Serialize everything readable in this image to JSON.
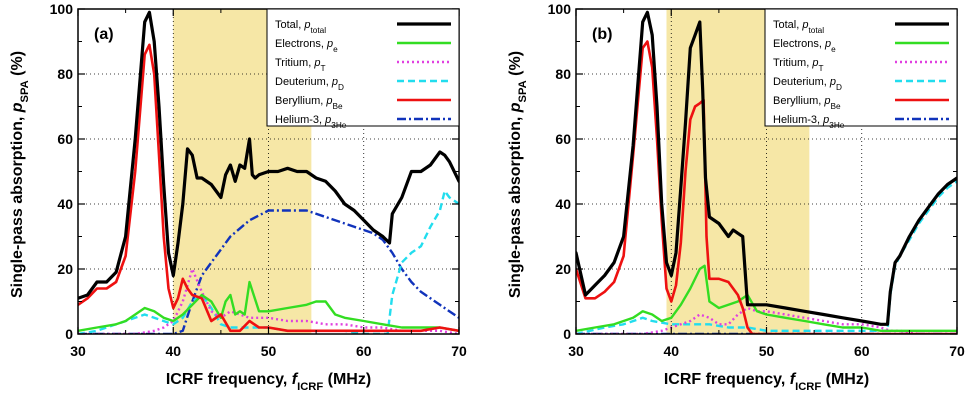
{
  "chart_data": [
    {
      "type": "line",
      "panel_label": "(a)",
      "xlabel": "ICRF frequency, f",
      "xlabel_sub": "ICRF",
      "xlabel_unit": " (MHz)",
      "ylabel": "Single-pass absorption, p",
      "ylabel_sub": "SPA",
      "ylabel_unit": " (%)",
      "xlim": [
        30,
        70
      ],
      "ylim": [
        0,
        100
      ],
      "xticks": [
        "30",
        "40",
        "50",
        "60",
        "70"
      ],
      "yticks": [
        "0",
        "20",
        "40",
        "60",
        "80",
        "100"
      ],
      "grid": true,
      "legend_position": "top-right",
      "shaded_band": [
        40,
        54.5
      ],
      "band_color": "#f6e7a6",
      "series": [
        {
          "name": "Total,",
          "sym": "p",
          "sub": "total",
          "color": "#000000",
          "dash": "",
          "width": 3.2,
          "x": [
            30,
            31,
            32,
            33,
            34,
            35,
            36,
            37,
            37.5,
            38,
            38.5,
            39,
            39.5,
            40,
            40.5,
            41,
            41.5,
            42,
            42.5,
            43,
            44,
            45,
            45.5,
            46,
            46.5,
            47,
            47.5,
            48,
            48.3,
            48.6,
            49,
            50,
            51,
            52,
            53,
            54,
            55,
            56,
            57,
            58,
            59,
            60,
            61,
            62,
            62.7,
            63,
            64,
            65,
            66,
            67,
            68,
            68.5,
            69,
            70
          ],
          "y": [
            11,
            12,
            16,
            16,
            19,
            30,
            60,
            96,
            99,
            90,
            70,
            46,
            25,
            18,
            28,
            40,
            57,
            55,
            48,
            48,
            46,
            42,
            49,
            52,
            47,
            52,
            51,
            60,
            49,
            48,
            49,
            50,
            50,
            51,
            50,
            50,
            48,
            47,
            44,
            40,
            38,
            35,
            32,
            30,
            28,
            37,
            42,
            50,
            50,
            52,
            56,
            55,
            53,
            47
          ]
        },
        {
          "name": "Electrons,",
          "sym": "p",
          "sub": "e",
          "color": "#33dd22",
          "dash": "",
          "width": 2.4,
          "x": [
            30,
            32,
            34,
            35,
            36,
            37,
            38,
            39,
            40,
            41,
            42,
            43,
            44,
            45,
            45.5,
            46,
            46.5,
            47,
            47.5,
            48,
            49,
            50,
            52,
            54,
            55,
            56,
            57,
            58,
            60,
            62,
            64,
            66,
            68,
            70
          ],
          "y": [
            1,
            2,
            3,
            4,
            6,
            8,
            7,
            5,
            4,
            6,
            9,
            12,
            10,
            5,
            10,
            12,
            6,
            7,
            6,
            16,
            7,
            7,
            8,
            9,
            10,
            10,
            6,
            5,
            4,
            3,
            2,
            2,
            2,
            1
          ]
        },
        {
          "name": "Tritium,",
          "sym": "p",
          "sub": "T",
          "color": "#e040e0",
          "dash": "2,3",
          "width": 2.4,
          "x": [
            30,
            34,
            36,
            38,
            39,
            40,
            41,
            42,
            43,
            44,
            45,
            46,
            47,
            48,
            50,
            52,
            54,
            56,
            58,
            60,
            62,
            64,
            66,
            68,
            70
          ],
          "y": [
            0,
            0,
            0,
            1,
            2,
            4,
            10,
            20,
            13,
            7,
            5,
            7,
            6,
            5,
            5,
            4,
            4,
            3,
            3,
            2,
            2,
            1,
            1,
            1,
            0
          ]
        },
        {
          "name": "Deuterium,",
          "sym": "p",
          "sub": "D",
          "color": "#22ddee",
          "dash": "7,4",
          "width": 2.4,
          "x": [
            30,
            32,
            34,
            36,
            37,
            38,
            40,
            41,
            42,
            43,
            44,
            45,
            46,
            47,
            48,
            50,
            52,
            54,
            56,
            58,
            60,
            62,
            62.5,
            63,
            64,
            65,
            66,
            67,
            68,
            68.5,
            69,
            70
          ],
          "y": [
            0,
            1,
            3,
            5,
            6,
            5,
            3,
            5,
            10,
            12,
            8,
            3,
            2,
            2,
            2,
            2,
            1,
            1,
            1,
            1,
            0,
            0,
            0,
            12,
            22,
            25,
            27,
            33,
            38,
            44,
            42,
            40
          ]
        },
        {
          "name": "Beryllium,",
          "sym": "p",
          "sub": "Be",
          "color": "#ee1111",
          "dash": "",
          "width": 2.6,
          "x": [
            30,
            31,
            32,
            33,
            34,
            35,
            36,
            37,
            37.5,
            38,
            38.5,
            39,
            39.5,
            40,
            40.5,
            41,
            41.5,
            42,
            43,
            44,
            45,
            46,
            47,
            48,
            49,
            50,
            52,
            54,
            56,
            58,
            60,
            62,
            64,
            66,
            68,
            70
          ],
          "y": [
            9,
            11,
            14,
            14,
            16,
            24,
            50,
            86,
            89,
            80,
            55,
            30,
            14,
            8,
            11,
            17,
            14,
            12,
            11,
            4,
            6,
            1,
            1,
            4,
            2,
            2,
            1,
            1,
            1,
            1,
            1,
            1,
            1,
            1,
            2,
            1
          ]
        },
        {
          "name": "Helium-3,",
          "sym": "p",
          "sub": "3He",
          "color": "#1133bb",
          "dash": "9,3,2,3",
          "width": 2.4,
          "x": [
            30,
            40,
            41,
            42,
            43,
            44,
            45,
            46,
            48,
            50,
            52,
            54,
            55,
            56,
            57,
            58,
            59,
            60,
            61,
            62,
            63,
            64,
            65,
            66,
            68,
            70
          ],
          "y": [
            0,
            0,
            1,
            10,
            18,
            22,
            26,
            30,
            35,
            38,
            38,
            38,
            37,
            36,
            35,
            34,
            33,
            32,
            31,
            29,
            25,
            20,
            16,
            13,
            9,
            5
          ]
        }
      ]
    },
    {
      "type": "line",
      "panel_label": "(b)",
      "xlabel": "ICRF frequency, f",
      "xlabel_sub": "ICRF",
      "xlabel_unit": " (MHz)",
      "ylabel": "Single-pass absorption, p",
      "ylabel_sub": "SPA",
      "ylabel_unit": " (%)",
      "xlim": [
        30,
        70
      ],
      "ylim": [
        0,
        100
      ],
      "xticks": [
        "30",
        "40",
        "50",
        "60",
        "70"
      ],
      "yticks": [
        "0",
        "20",
        "40",
        "60",
        "80",
        "100"
      ],
      "grid": true,
      "legend_position": "top-right",
      "shaded_band": [
        39.5,
        54.5
      ],
      "band_color": "#f6e7a6",
      "series": [
        {
          "name": "Total,",
          "sym": "p",
          "sub": "total",
          "color": "#000000",
          "dash": "",
          "width": 3.2,
          "x": [
            30,
            31,
            32,
            33,
            34,
            35,
            36,
            37,
            37.5,
            38,
            38.5,
            39,
            39.5,
            40,
            40.5,
            41,
            41.5,
            42,
            42.5,
            43,
            43.3,
            43.6,
            44,
            45,
            46,
            46.5,
            47,
            47.5,
            48,
            50,
            52,
            54,
            56,
            58,
            60,
            62,
            62.7,
            63,
            63.5,
            64,
            65,
            66,
            67,
            68,
            69,
            70
          ],
          "y": [
            25,
            12,
            15,
            18,
            22,
            30,
            58,
            96,
            99,
            92,
            70,
            40,
            22,
            18,
            25,
            45,
            65,
            88,
            92,
            96,
            75,
            48,
            36,
            34,
            30,
            32,
            31,
            30,
            9,
            9,
            8,
            7,
            6,
            5,
            4,
            3,
            3,
            13,
            22,
            24,
            30,
            35,
            39,
            43,
            46,
            48
          ]
        },
        {
          "name": "Electrons,",
          "sym": "p",
          "sub": "e",
          "color": "#33dd22",
          "dash": "",
          "width": 2.4,
          "x": [
            30,
            32,
            34,
            36,
            37,
            38,
            39,
            40,
            41,
            42,
            43,
            43.5,
            44,
            45,
            46,
            47,
            48,
            49,
            50,
            52,
            54,
            56,
            58,
            60,
            62,
            64,
            66,
            68,
            70
          ],
          "y": [
            1,
            2,
            3,
            5,
            7,
            6,
            4,
            5,
            9,
            14,
            20,
            21,
            10,
            8,
            9,
            10,
            12,
            7,
            6,
            5,
            4,
            3,
            2,
            2,
            1,
            1,
            1,
            1,
            1
          ]
        },
        {
          "name": "Tritium,",
          "sym": "p",
          "sub": "T",
          "color": "#e040e0",
          "dash": "2,3",
          "width": 2.4,
          "x": [
            30,
            34,
            37,
            39,
            40,
            41,
            42,
            43,
            44,
            45,
            46,
            47,
            48,
            49,
            50,
            52,
            54,
            56,
            58,
            60,
            62,
            63,
            64,
            66,
            68,
            70
          ],
          "y": [
            0,
            0,
            0,
            1,
            2,
            3,
            4,
            6,
            5,
            3,
            3,
            6,
            8,
            7,
            7,
            6,
            5,
            4,
            3,
            3,
            2,
            1,
            1,
            0,
            0,
            0
          ]
        },
        {
          "name": "Deuterium,",
          "sym": "p",
          "sub": "D",
          "color": "#22ddee",
          "dash": "7,4",
          "width": 2.4,
          "x": [
            30,
            33,
            35,
            37,
            38,
            40,
            42,
            44,
            46,
            48,
            50,
            52,
            54,
            56,
            58,
            60,
            62,
            62.7,
            63,
            63.5,
            64,
            65,
            66,
            67,
            68,
            69,
            70
          ],
          "y": [
            0,
            2,
            3,
            5,
            4,
            3,
            3,
            3,
            2,
            2,
            1,
            1,
            1,
            1,
            1,
            1,
            1,
            1,
            12,
            21,
            24,
            29,
            34,
            38,
            42,
            45,
            47
          ]
        },
        {
          "name": "Beryllium,",
          "sym": "p",
          "sub": "Be",
          "color": "#ee1111",
          "dash": "",
          "width": 2.6,
          "x": [
            30,
            31,
            32,
            33,
            34,
            35,
            36,
            37,
            37.5,
            38,
            38.5,
            39,
            39.5,
            40,
            40.5,
            41,
            41.5,
            42,
            42.5,
            43,
            43.4,
            43.7,
            44,
            45,
            46,
            47,
            47.5,
            48,
            48.5,
            50,
            55,
            60,
            65,
            70
          ],
          "y": [
            20,
            11,
            11,
            13,
            16,
            24,
            55,
            88,
            90,
            82,
            60,
            35,
            14,
            10,
            15,
            28,
            50,
            66,
            70,
            71,
            72,
            30,
            17,
            17,
            16,
            12,
            8,
            2,
            0,
            0,
            0,
            0,
            0,
            0
          ]
        },
        {
          "name": "Helium-3,",
          "sym": "p",
          "sub": "3He",
          "color": "#1133bb",
          "dash": "9,3,2,3",
          "width": 2.4,
          "x": [
            30,
            70
          ],
          "y": [
            0,
            0
          ]
        }
      ]
    }
  ]
}
